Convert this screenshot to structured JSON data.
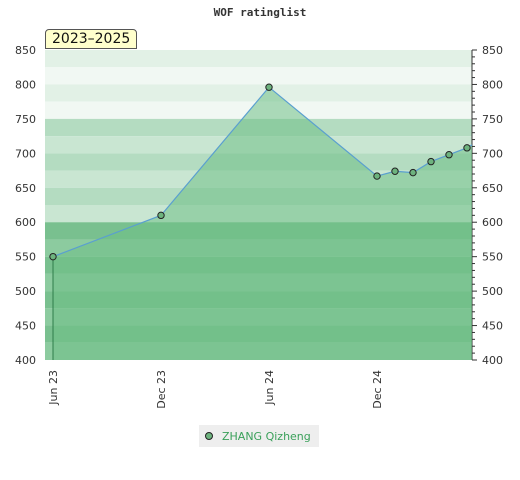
{
  "chart_data": {
    "type": "area",
    "title": "WOF ratinglist",
    "period_label": "2023–2025",
    "ylim": [
      400,
      850
    ],
    "y_ticks": [
      850,
      800,
      750,
      700,
      650,
      600,
      550,
      500,
      450,
      400
    ],
    "x_tick_labels": [
      "Jun 23",
      "Dec 23",
      "Jun 24",
      "Dec 24"
    ],
    "series": [
      {
        "name": "ZHANG Qizheng",
        "color": "#6fbf86",
        "line_color": "#5a9fd0",
        "points": [
          {
            "date": "2023-06",
            "value": 550
          },
          {
            "date": "2023-12",
            "value": 610
          },
          {
            "date": "2024-06",
            "value": 796
          },
          {
            "date": "2024-12",
            "value": 667
          },
          {
            "date": "2025-01",
            "value": 674
          },
          {
            "date": "2025-02",
            "value": 672
          },
          {
            "date": "2025-03",
            "value": 688
          },
          {
            "date": "2025-04",
            "value": 698
          },
          {
            "date": "2025-05",
            "value": 708
          }
        ]
      }
    ],
    "grid": "horizontal bands",
    "legend": "bottom-center"
  }
}
